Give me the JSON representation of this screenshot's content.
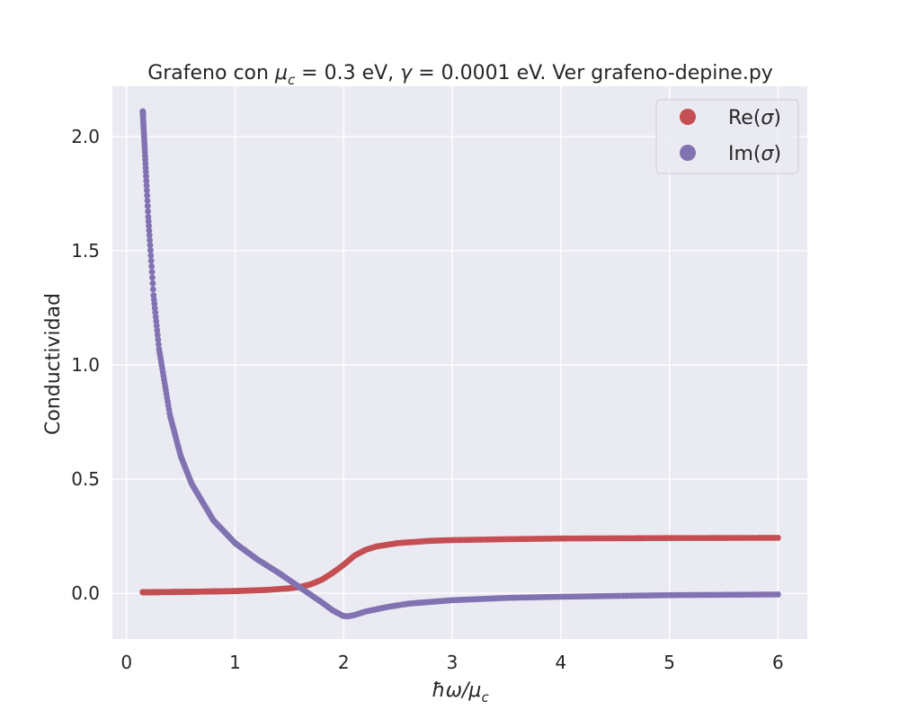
{
  "chart_data": {
    "type": "scatter",
    "title_parts": [
      "Grafeno con ",
      "μ",
      "c",
      " = 0.3 eV, ",
      "γ",
      " = 0.0001 eV. Ver grafeno-depine.py"
    ],
    "xlabel_parts": [
      "ħω/μ",
      "c"
    ],
    "ylabel": "Conductividad",
    "xlim": [
      -0.13,
      6.27
    ],
    "ylim": [
      -0.2,
      2.22
    ],
    "xticks": [
      0,
      1,
      2,
      3,
      4,
      5,
      6
    ],
    "xtick_labels": [
      "0",
      "1",
      "2",
      "3",
      "4",
      "5",
      "6"
    ],
    "yticks": [
      0.0,
      0.5,
      1.0,
      1.5,
      2.0
    ],
    "ytick_labels": [
      "0.0",
      "0.5",
      "1.0",
      "1.5",
      "2.0"
    ],
    "grid": true,
    "legend_position": "top-right",
    "series": [
      {
        "name_parts": [
          "Re(",
          "σ",
          ")"
        ],
        "color": "#c44e52",
        "x_range": [
          0.15,
          6.0
        ],
        "x": [
          0.15,
          0.5,
          1.0,
          1.3,
          1.5,
          1.6,
          1.7,
          1.8,
          1.9,
          2.0,
          2.05,
          2.1,
          2.2,
          2.3,
          2.5,
          2.8,
          3.0,
          3.5,
          4.0,
          5.0,
          6.0
        ],
        "values": [
          0.005,
          0.006,
          0.01,
          0.015,
          0.022,
          0.028,
          0.04,
          0.06,
          0.09,
          0.125,
          0.145,
          0.165,
          0.19,
          0.205,
          0.22,
          0.23,
          0.233,
          0.237,
          0.24,
          0.242,
          0.243
        ]
      },
      {
        "name_parts": [
          "Im(",
          "σ",
          ")"
        ],
        "color": "#8172b2",
        "x_range": [
          0.15,
          6.0
        ],
        "x": [
          0.15,
          0.2,
          0.25,
          0.3,
          0.4,
          0.5,
          0.6,
          0.8,
          1.0,
          1.2,
          1.4,
          1.6,
          1.8,
          1.9,
          2.0,
          2.05,
          2.1,
          2.2,
          2.4,
          2.6,
          3.0,
          3.5,
          4.0,
          5.0,
          6.0
        ],
        "values": [
          2.11,
          1.65,
          1.3,
          1.07,
          0.78,
          0.6,
          0.48,
          0.32,
          0.22,
          0.15,
          0.09,
          0.025,
          -0.04,
          -0.075,
          -0.1,
          -0.1,
          -0.095,
          -0.08,
          -0.06,
          -0.045,
          -0.03,
          -0.02,
          -0.015,
          -0.008,
          -0.005
        ]
      }
    ]
  }
}
